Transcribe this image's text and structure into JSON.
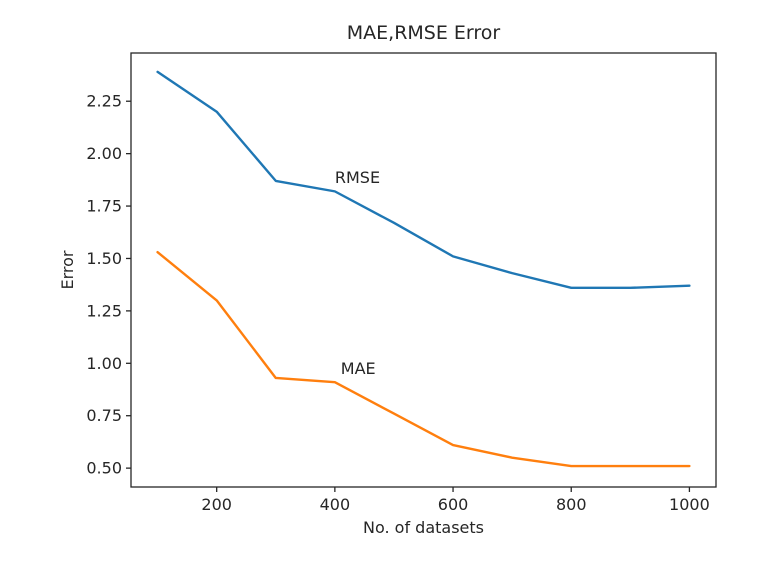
{
  "chart_data": {
    "type": "line",
    "title": "MAE,RMSE Error",
    "xlabel": "No. of datasets",
    "ylabel": "Error",
    "x": [
      100,
      200,
      300,
      400,
      500,
      600,
      700,
      800,
      900,
      1000
    ],
    "series": [
      {
        "name": "RMSE",
        "color": "#1f77b4",
        "values": [
          2.39,
          2.2,
          1.87,
          1.82,
          1.67,
          1.51,
          1.43,
          1.36,
          1.36,
          1.37
        ]
      },
      {
        "name": "MAE",
        "color": "#ff7f0e",
        "values": [
          1.53,
          1.3,
          0.93,
          0.91,
          0.76,
          0.61,
          0.55,
          0.51,
          0.51,
          0.51
        ]
      }
    ],
    "annotations": [
      {
        "text": "RMSE",
        "x": 400,
        "y": 1.86
      },
      {
        "text": "MAE",
        "x": 410,
        "y": 0.95
      }
    ],
    "xticks": [
      200,
      400,
      600,
      800,
      1000
    ],
    "yticks": [
      0.5,
      0.75,
      1.0,
      1.25,
      1.5,
      1.75,
      2.0,
      2.25
    ],
    "ytick_labels": [
      "0.50",
      "0.75",
      "1.00",
      "1.25",
      "1.50",
      "1.75",
      "2.00",
      "2.25"
    ],
    "xlim": [
      55,
      1045
    ],
    "ylim": [
      0.41,
      2.48
    ],
    "grid": false,
    "legend_position": "none",
    "text_color": "#262626",
    "spine_color": "#262626"
  }
}
